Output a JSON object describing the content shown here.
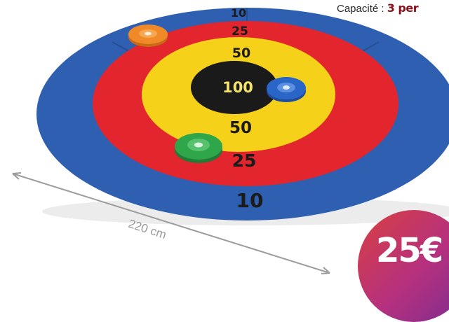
{
  "header": {
    "capacity_label": "Capacité :",
    "capacity_value": "3 per"
  },
  "target": {
    "rings": [
      {
        "score": "10"
      },
      {
        "score": "25"
      },
      {
        "score": "50"
      },
      {
        "score": "100"
      },
      {
        "score": "50"
      },
      {
        "score": "25"
      },
      {
        "score": "10"
      }
    ],
    "colors": {
      "outer": "#2f5fb0",
      "ring_red": "#e3262d",
      "ring_yellow": "#f6d11a",
      "bullseye": "#1a1a1a",
      "score_dark": "#1b1b1b",
      "score_light": "#f5e46a"
    },
    "discs": [
      {
        "name": "orange-disc",
        "color": "#f08a28"
      },
      {
        "name": "blue-disc",
        "color": "#2a66c8"
      },
      {
        "name": "green-disc",
        "color": "#2fa64a"
      }
    ]
  },
  "dimension": {
    "label": "220 cm"
  },
  "price": {
    "label": "25€"
  }
}
